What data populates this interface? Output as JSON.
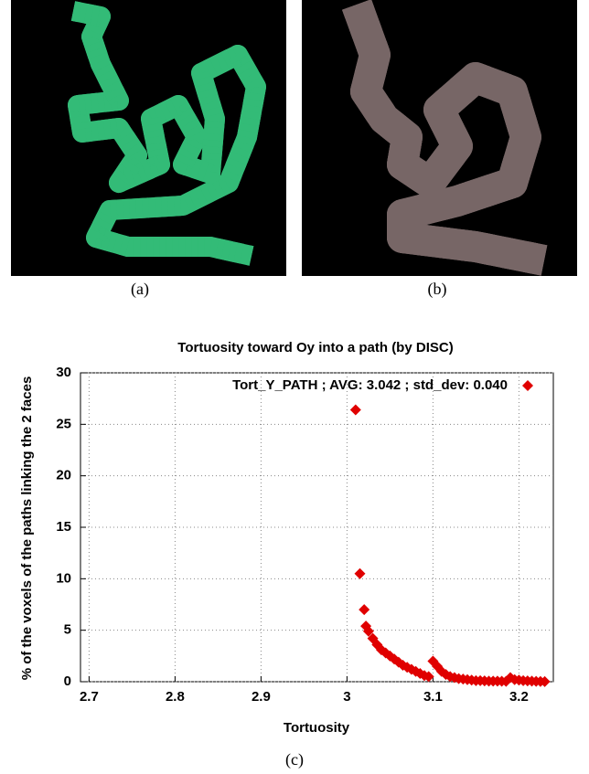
{
  "figure": {
    "captions": [
      "(a)",
      "(b)",
      "(c)"
    ]
  },
  "chart_data": {
    "type": "scatter",
    "title": "Tortuosity toward Oy into a path (by DISC)",
    "x_label": "Tortuosity",
    "y_label": "% of the voxels of the paths linking the 2 faces",
    "xlim": [
      2.69,
      3.24
    ],
    "xticks": [
      2.7,
      2.8,
      2.9,
      3,
      3.1,
      3.2
    ],
    "ylim": [
      0,
      30
    ],
    "yticks": [
      0,
      5,
      10,
      15,
      20,
      25,
      30
    ],
    "grid": true,
    "legend": "top",
    "x": [
      3.01,
      3.015,
      3.02,
      3.022,
      3.025,
      3.03,
      3.035,
      3.04,
      3.045,
      3.05,
      3.055,
      3.06,
      3.065,
      3.07,
      3.075,
      3.08,
      3.085,
      3.09,
      3.095,
      3.1,
      3.105,
      3.11,
      3.115,
      3.12,
      3.125,
      3.13,
      3.135,
      3.14,
      3.145,
      3.15,
      3.155,
      3.16,
      3.165,
      3.17,
      3.175,
      3.18,
      3.185,
      3.19,
      3.195,
      3.2,
      3.205,
      3.21,
      3.215,
      3.22,
      3.225,
      3.23
    ],
    "series": [
      {
        "name": "Tort_Y_PATH ; AVG: 3.042 ; std_dev: 0.040",
        "color": "#e00000",
        "values": [
          26.4,
          10.5,
          7.0,
          5.4,
          4.9,
          4.2,
          3.6,
          3.1,
          2.8,
          2.5,
          2.2,
          1.9,
          1.6,
          1.4,
          1.2,
          1.0,
          0.8,
          0.6,
          0.5,
          2.0,
          1.5,
          1.0,
          0.7,
          0.5,
          0.4,
          0.3,
          0.25,
          0.2,
          0.15,
          0.1,
          0.1,
          0.08,
          0.06,
          0.05,
          0.05,
          0.04,
          0.03,
          0.4,
          0.2,
          0.15,
          0.1,
          0.08,
          0.05,
          0.03,
          0.02,
          0.01
        ]
      }
    ]
  }
}
